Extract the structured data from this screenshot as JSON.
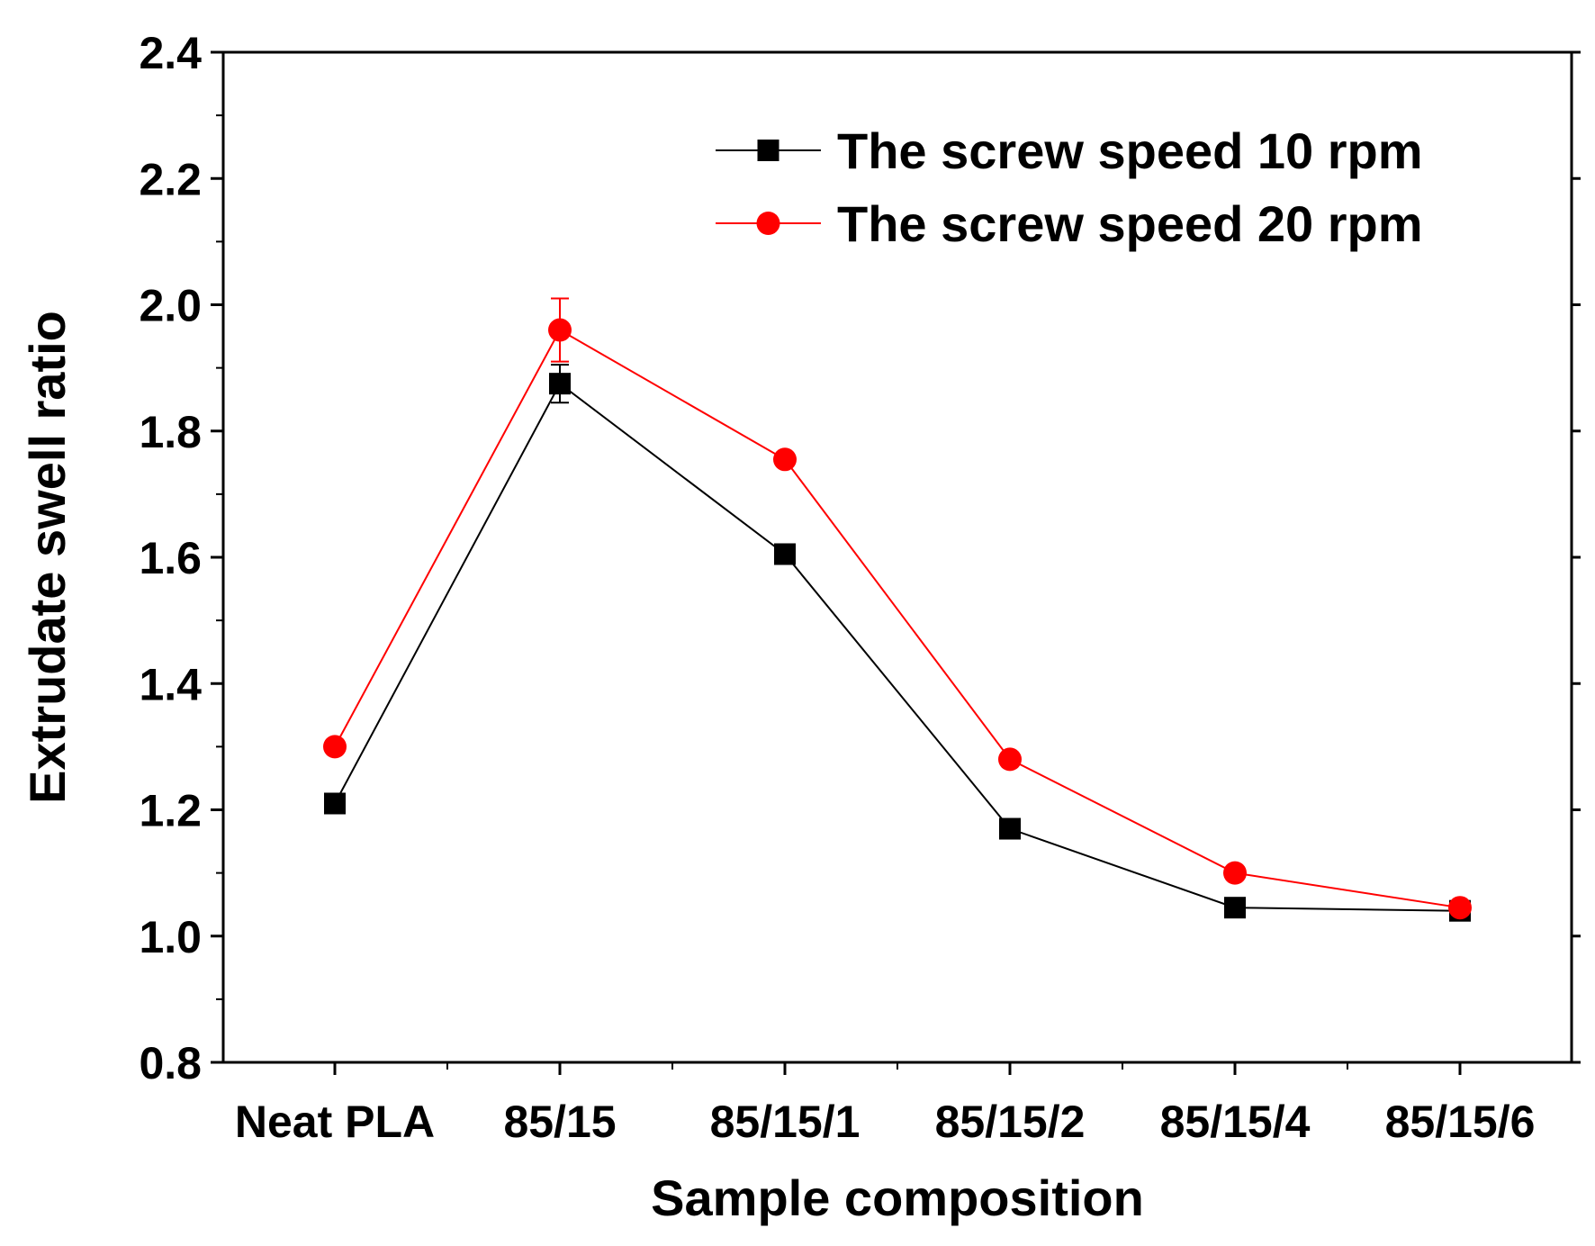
{
  "chart_data": {
    "type": "line",
    "title": "",
    "xlabel": "Sample composition",
    "ylabel": "Extrudate swell ratio",
    "categories": [
      "Neat PLA",
      "85/15",
      "85/15/1",
      "85/15/2",
      "85/15/4",
      "85/15/6"
    ],
    "ylim": [
      0.8,
      2.4
    ],
    "yticks": [
      "0.8",
      "1.0",
      "1.2",
      "1.4",
      "1.6",
      "1.8",
      "2.0",
      "2.2",
      "2.4"
    ],
    "grid": false,
    "legend_position": "top-right",
    "series": [
      {
        "name": "The screw speed 10 rpm",
        "color": "#000000",
        "marker": "square",
        "values": [
          1.21,
          1.875,
          1.605,
          1.17,
          1.045,
          1.04
        ],
        "errors": [
          0,
          0.03,
          0,
          0,
          0,
          0
        ]
      },
      {
        "name": "The screw speed 20 rpm",
        "color": "#ff0000",
        "marker": "circle",
        "values": [
          1.3,
          1.96,
          1.755,
          1.28,
          1.1,
          1.045
        ],
        "errors": [
          0,
          0.05,
          0,
          0,
          0,
          0
        ]
      }
    ]
  }
}
